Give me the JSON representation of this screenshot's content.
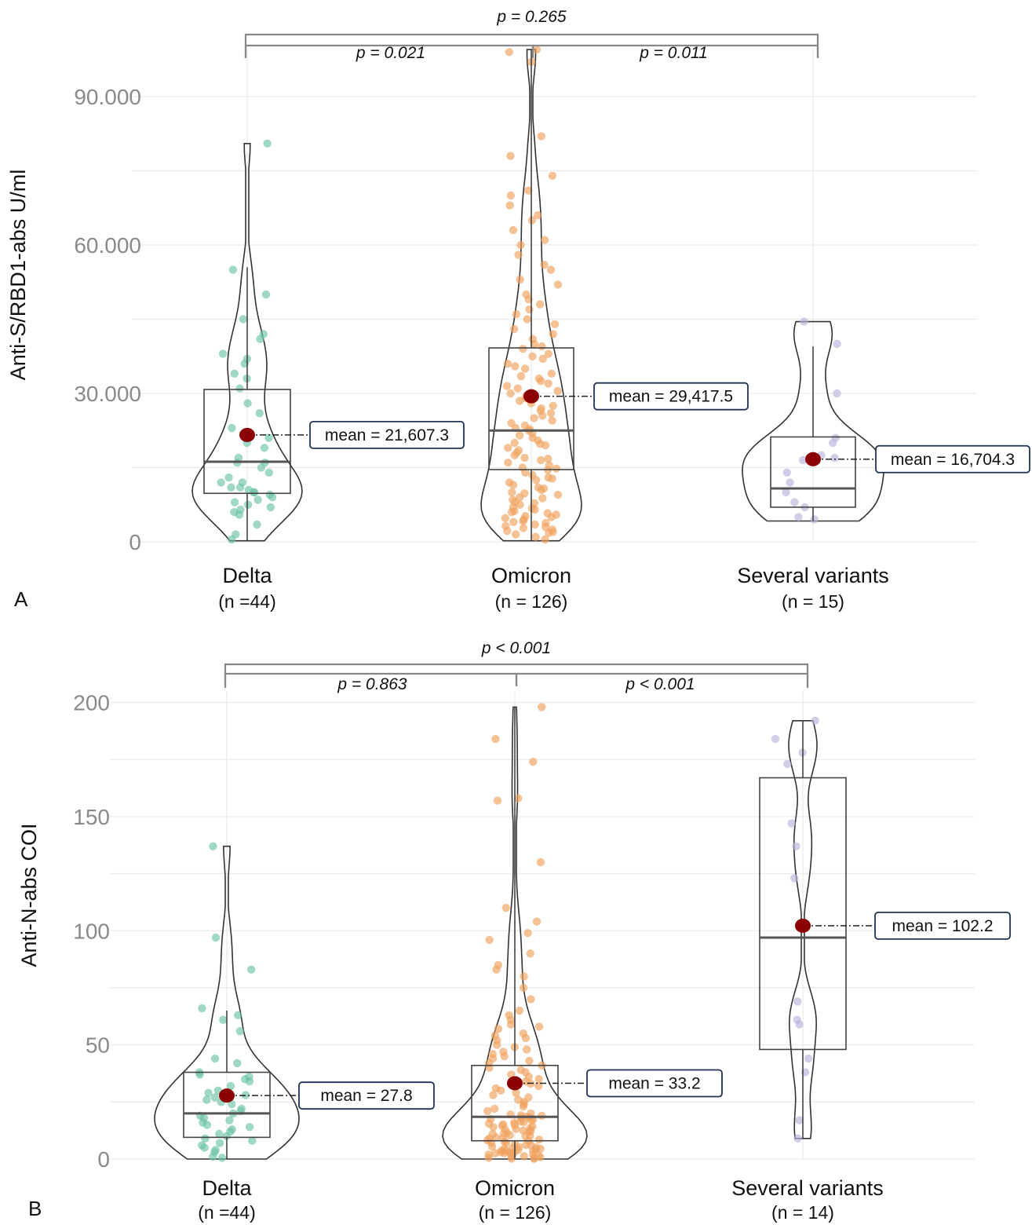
{
  "chart_data": [
    {
      "panel": "A",
      "type": "violin",
      "ylabel": "Anti-S/RBD1-abs U/ml",
      "ylim": [
        0,
        100000
      ],
      "yticks": [
        0,
        30000,
        60000,
        90000
      ],
      "ytick_labels": [
        "0",
        "30.000",
        "60.000",
        "90.000"
      ],
      "grid": true,
      "categories": [
        "Delta",
        "Omicron",
        "Several variants"
      ],
      "n_labels": [
        "(n =44)",
        "(n =  126)",
        "(n = 15)"
      ],
      "colors": [
        "#6cc3a4",
        "#f0a15e",
        "#b8b3dc"
      ],
      "groups": [
        {
          "name": "Delta",
          "min": 200,
          "q1": 9800,
          "median": 16200,
          "q3": 30800,
          "max": 80500,
          "whisker_high": 55500,
          "mean": 21607.3,
          "mean_label": "mean = 21,607.3",
          "points": [
            80500,
            55000,
            50000,
            45000,
            42000,
            41000,
            38000,
            37000,
            36000,
            34000,
            33000,
            31000,
            28000,
            26000,
            23000,
            22000,
            21000,
            20000,
            19000,
            17000,
            16000,
            16000,
            15000,
            14000,
            13000,
            12000,
            12000,
            11000,
            11000,
            10500,
            10000,
            10000,
            9500,
            9000,
            8500,
            8000,
            7500,
            7000,
            6500,
            6000,
            5500,
            3500,
            1500,
            500
          ]
        },
        {
          "name": "Omicron",
          "min": 200,
          "q1": 14600,
          "median": 22500,
          "q3": 39200,
          "max": 99500,
          "whisker_high": 99500,
          "mean": 29417.5,
          "mean_label": "mean = 29,417.5",
          "points": [
            99500,
            99000,
            97000,
            82000,
            78000,
            74000,
            71000,
            70000,
            68000,
            66000,
            65000,
            63000,
            61000,
            60000,
            58000,
            56000,
            55000,
            53000,
            52000,
            50000,
            49000,
            48000,
            47000,
            46000,
            45000,
            44000,
            43000,
            42000,
            41000,
            40000,
            39500,
            39000,
            38000,
            37500,
            37000,
            36000,
            35500,
            35000,
            34000,
            33500,
            33000,
            32500,
            32000,
            31500,
            31000,
            30500,
            30000,
            29500,
            29000,
            28500,
            28000,
            27500,
            27000,
            26500,
            26000,
            25500,
            25000,
            24500,
            24000,
            23500,
            23000,
            22800,
            22500,
            22000,
            21500,
            21000,
            20500,
            20000,
            19800,
            19500,
            19000,
            18500,
            18000,
            17500,
            17000,
            16800,
            16500,
            16000,
            15500,
            15000,
            14800,
            14500,
            14000,
            13500,
            13000,
            12800,
            12500,
            12000,
            11500,
            11000,
            10800,
            10500,
            10000,
            9800,
            9500,
            9000,
            8800,
            8500,
            8000,
            7800,
            7500,
            7000,
            6800,
            6500,
            6200,
            6000,
            5800,
            5500,
            5200,
            5000,
            4800,
            4500,
            4200,
            4000,
            3800,
            3500,
            3200,
            3000,
            2800,
            2500,
            2200,
            2000,
            1800,
            1500,
            1000,
            500
          ]
        },
        {
          "name": "Several variants",
          "min": 4200,
          "q1": 7000,
          "median": 10800,
          "q3": 21200,
          "max": 44500,
          "whisker_high": 39500,
          "mean": 16704.3,
          "mean_label": "mean = 16,704.3",
          "points": [
            44500,
            40000,
            30000,
            21000,
            20000,
            17500,
            17000,
            16500,
            14000,
            12000,
            10000,
            8000,
            7000,
            5000,
            4500
          ]
        }
      ],
      "comparisons": [
        {
          "from": "Delta",
          "to": "Omicron",
          "label": "p = 0.021",
          "level": 1
        },
        {
          "from": "Omicron",
          "to": "Several variants",
          "label": "p = 0.011",
          "level": 1
        },
        {
          "from": "Delta",
          "to": "Several variants",
          "label": "p = 0.265",
          "level": 2
        }
      ]
    },
    {
      "panel": "B",
      "type": "violin",
      "ylabel": "Anti-N-abs COI",
      "ylim": [
        0,
        205
      ],
      "yticks": [
        0,
        50,
        100,
        150,
        200
      ],
      "ytick_labels": [
        "0",
        "50",
        "100",
        "150",
        "200"
      ],
      "grid": true,
      "categories": [
        "Delta",
        "Omicron",
        "Several variants"
      ],
      "n_labels": [
        "(n =44)",
        "(n =  126)",
        "(n = 14)"
      ],
      "colors": [
        "#6cc3a4",
        "#f0a15e",
        "#b8b3dc"
      ],
      "groups": [
        {
          "name": "Delta",
          "min": 0,
          "q1": 9.5,
          "median": 20,
          "q3": 38,
          "max": 137,
          "whisker_high": 65,
          "mean": 27.8,
          "mean_label": "mean = 27.8",
          "points": [
            137,
            97,
            83,
            66,
            63,
            61,
            56,
            44,
            42,
            38,
            37,
            36,
            35,
            34,
            32,
            30,
            29,
            28,
            27,
            26,
            25,
            24,
            22,
            21,
            20,
            19,
            18,
            17,
            16,
            15,
            14,
            13,
            12,
            11,
            10,
            9,
            8,
            7,
            6,
            5,
            4,
            3,
            1,
            0.5
          ]
        },
        {
          "name": "Omicron",
          "min": 0,
          "q1": 8,
          "median": 18.5,
          "q3": 41,
          "max": 198,
          "whisker_high": 198,
          "mean": 33.2,
          "mean_label": "mean = 33.2",
          "points": [
            198,
            184,
            174,
            158,
            157,
            130,
            110,
            104,
            99,
            96,
            90,
            85,
            83,
            80,
            75,
            70,
            65,
            63,
            61,
            59,
            58,
            57,
            55,
            54,
            53,
            52,
            50,
            49,
            48,
            47,
            46,
            45,
            44,
            43,
            42,
            41,
            40,
            39,
            38,
            37,
            36,
            35,
            34,
            33,
            32,
            31,
            30,
            29,
            28,
            27,
            26,
            25,
            24,
            23,
            22,
            21,
            20,
            19.5,
            19,
            18.5,
            18,
            17.5,
            17,
            16.5,
            16,
            15.5,
            15,
            14.5,
            14,
            13.5,
            13,
            12.5,
            12,
            11.5,
            11,
            10.5,
            10,
            9.5,
            9,
            8.5,
            8,
            7.5,
            7,
            6.5,
            6,
            5.5,
            5,
            4.8,
            4.5,
            4.2,
            4,
            3.8,
            3.5,
            3.2,
            3,
            2.8,
            2.5,
            2.2,
            2,
            1.8,
            1.5,
            1.2,
            1,
            0.8,
            0.5,
            0.3,
            0.2,
            0.1,
            2.6,
            3.4,
            4.4,
            5.2,
            6.2,
            7.2,
            8.2,
            9.2,
            10.2,
            11.2,
            12.2,
            13.2,
            14.2,
            15.2,
            16.2,
            17.2,
            18.2,
            19.2
          ]
        },
        {
          "name": "Several variants",
          "min": 9,
          "q1": 48,
          "median": 97,
          "q3": 167,
          "max": 192,
          "whisker_high": 192,
          "mean": 102.2,
          "mean_label": "mean = 102.2",
          "points": [
            192,
            184,
            178,
            173,
            147,
            137,
            123,
            69,
            61,
            59,
            44,
            38,
            17,
            9
          ]
        }
      ],
      "comparisons": [
        {
          "from": "Delta",
          "to": "Omicron",
          "label": "p = 0.863",
          "level": 1
        },
        {
          "from": "Omicron",
          "to": "Several variants",
          "label": "p < 0.001",
          "level": 1
        },
        {
          "from": "Delta",
          "to": "Several variants",
          "label": "p < 0.001",
          "level": 2
        }
      ]
    }
  ]
}
